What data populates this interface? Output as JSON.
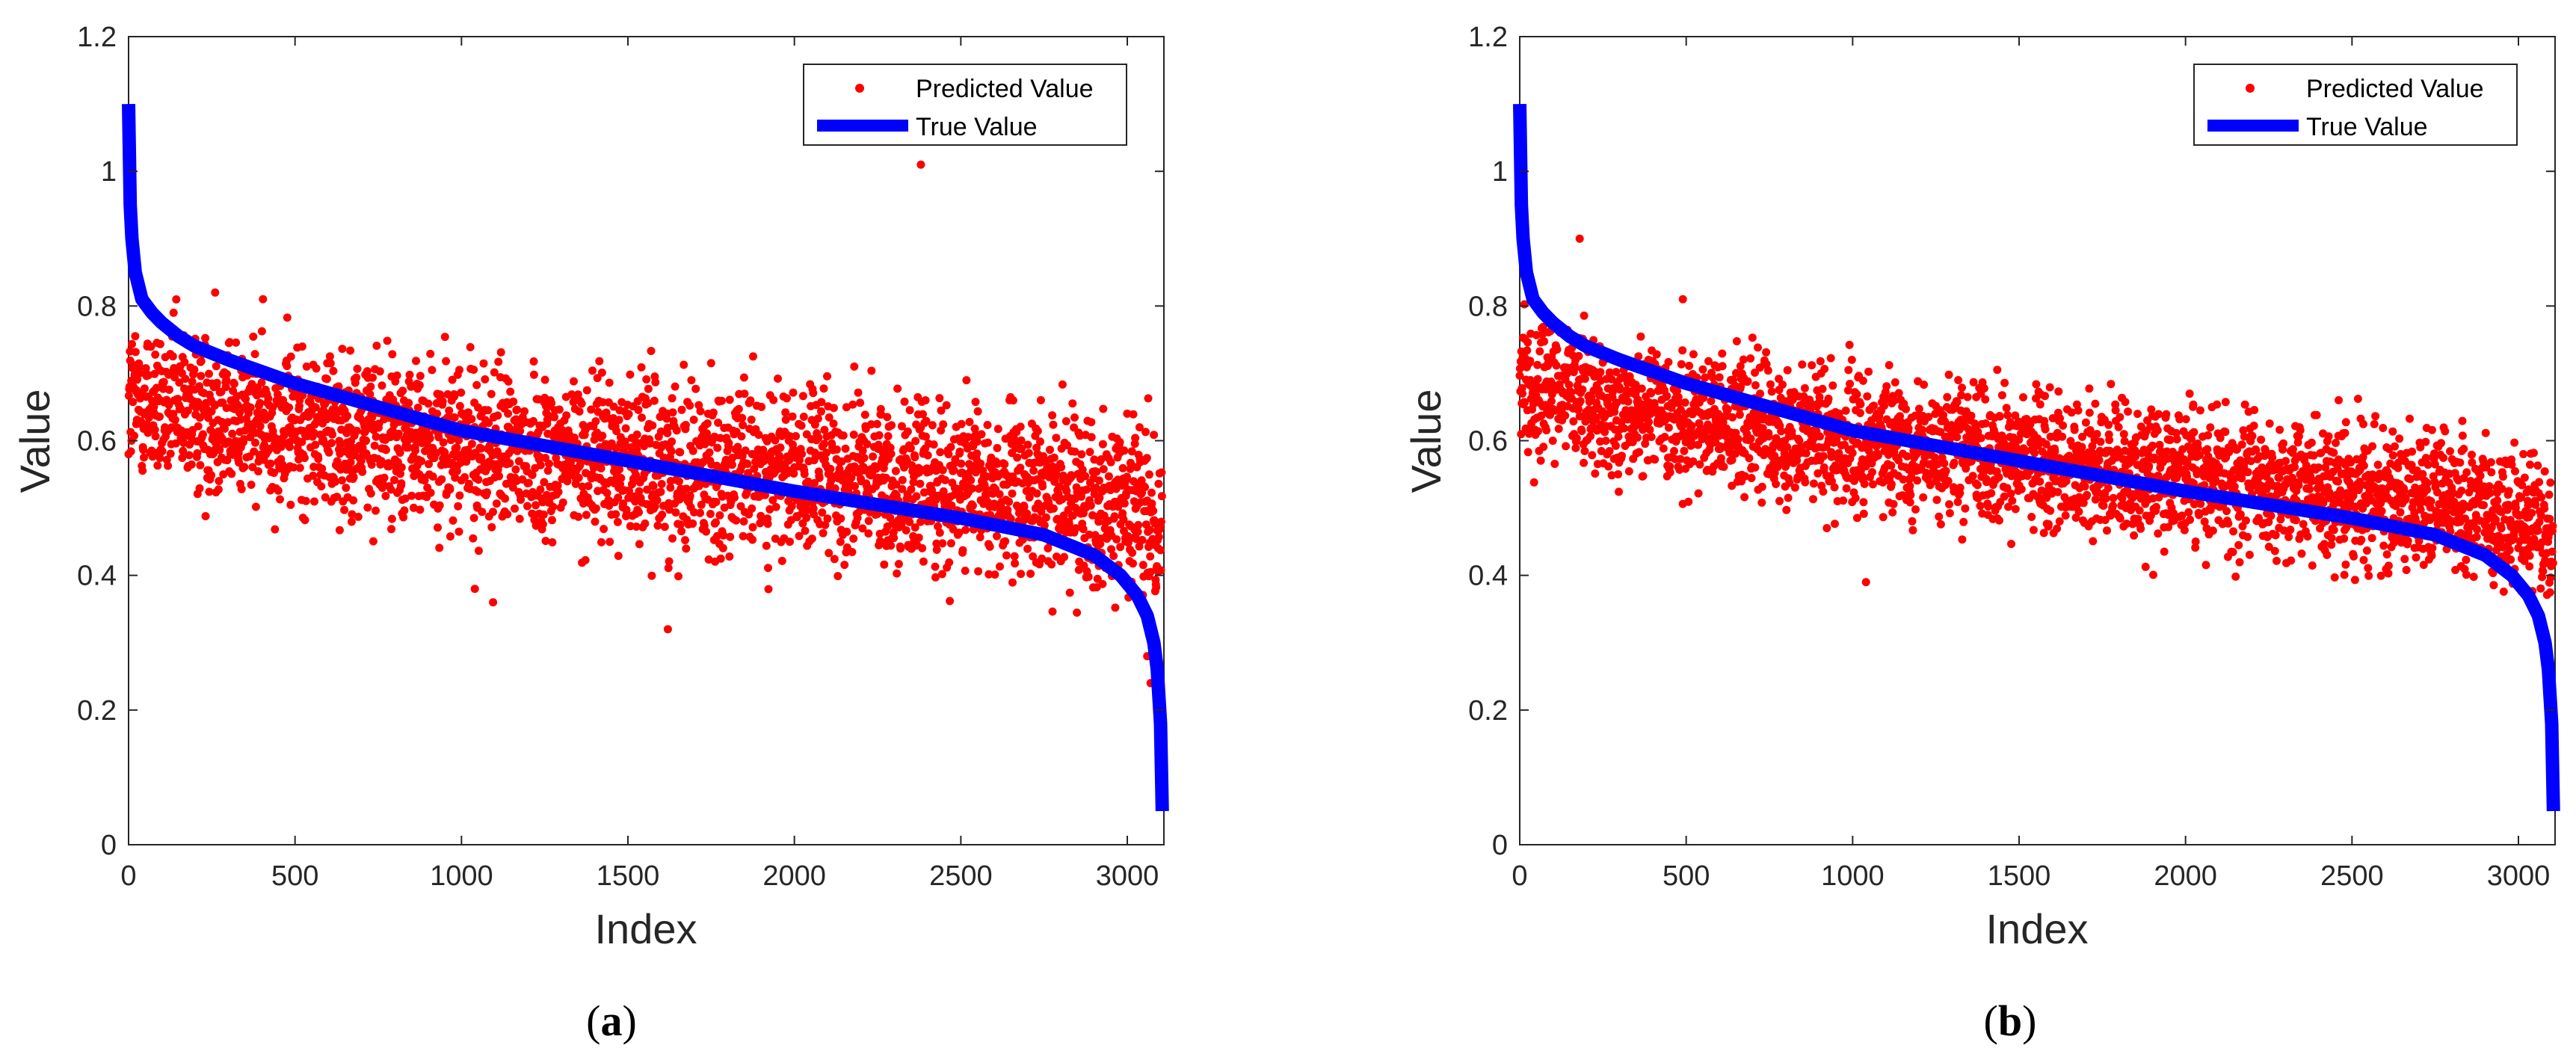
{
  "chart_data": [
    {
      "panel": "a",
      "type": "scatter",
      "caption_open": "(",
      "caption_letter": "a",
      "caption_close": ")",
      "xlabel": "Index",
      "ylabel": "Value",
      "xlim": [
        0,
        3110
      ],
      "ylim": [
        0,
        1.2
      ],
      "xticks": [
        0,
        500,
        1000,
        1500,
        2000,
        2500,
        3000
      ],
      "yticks": [
        0,
        0.2,
        0.4,
        0.6,
        0.8,
        1,
        1.2
      ],
      "legend_position": "top-right",
      "series": [
        {
          "name": "Predicted Value",
          "kind": "scatter",
          "color": "#ff0000",
          "n_points": 3100,
          "trend_x": [
            0,
            250,
            500,
            1000,
            1500,
            2000,
            2500,
            3000,
            3100
          ],
          "trend_y": [
            0.66,
            0.64,
            0.62,
            0.59,
            0.57,
            0.55,
            0.53,
            0.51,
            0.48
          ],
          "spread_y": 0.06,
          "notable_points": [
            {
              "x": 2380,
              "y": 1.01
            },
            {
              "x": 1620,
              "y": 0.32
            },
            {
              "x": 1040,
              "y": 0.38
            },
            {
              "x": 1095,
              "y": 0.36
            },
            {
              "x": 2180,
              "y": 0.71
            },
            {
              "x": 260,
              "y": 0.82
            },
            {
              "x": 3070,
              "y": 0.24
            },
            {
              "x": 3060,
              "y": 0.28
            }
          ]
        },
        {
          "name": "True Value",
          "kind": "line",
          "color": "#0000ff",
          "x": [
            0,
            5,
            10,
            20,
            40,
            70,
            100,
            150,
            200,
            300,
            500,
            750,
            1000,
            1500,
            2000,
            2500,
            2750,
            2900,
            2980,
            3030,
            3060,
            3080,
            3090,
            3100,
            3105
          ],
          "y": [
            1.1,
            0.95,
            0.9,
            0.85,
            0.81,
            0.79,
            0.775,
            0.755,
            0.74,
            0.72,
            0.685,
            0.65,
            0.615,
            0.57,
            0.525,
            0.485,
            0.46,
            0.43,
            0.4,
            0.37,
            0.34,
            0.3,
            0.26,
            0.18,
            0.05
          ]
        }
      ]
    },
    {
      "panel": "b",
      "type": "scatter",
      "caption_open": "(",
      "caption_letter": "b",
      "caption_close": ")",
      "xlabel": "Index",
      "ylabel": "Value",
      "xlim": [
        0,
        3110
      ],
      "ylim": [
        0,
        1.2
      ],
      "xticks": [
        0,
        500,
        1000,
        1500,
        2000,
        2500,
        3000
      ],
      "yticks": [
        0,
        0.2,
        0.4,
        0.6,
        0.8,
        1,
        1.2
      ],
      "legend_position": "top-right",
      "series": [
        {
          "name": "Predicted Value",
          "kind": "scatter",
          "color": "#ff0000",
          "n_points": 3100,
          "trend_x": [
            0,
            250,
            500,
            1000,
            1500,
            2000,
            2500,
            3000,
            3100
          ],
          "trend_y": [
            0.69,
            0.65,
            0.63,
            0.6,
            0.575,
            0.55,
            0.52,
            0.49,
            0.45
          ],
          "spread_y": 0.05,
          "notable_points": [
            {
              "x": 180,
              "y": 0.9
            },
            {
              "x": 490,
              "y": 0.81
            },
            {
              "x": 1040,
              "y": 0.39
            },
            {
              "x": 2460,
              "y": 0.66
            },
            {
              "x": 3080,
              "y": 0.27
            }
          ]
        },
        {
          "name": "True Value",
          "kind": "line",
          "color": "#0000ff",
          "x": [
            0,
            5,
            10,
            20,
            40,
            70,
            100,
            150,
            200,
            300,
            500,
            750,
            1000,
            1500,
            2000,
            2500,
            2750,
            2900,
            2980,
            3030,
            3060,
            3080,
            3090,
            3100,
            3105
          ],
          "y": [
            1.1,
            0.95,
            0.9,
            0.85,
            0.81,
            0.79,
            0.775,
            0.755,
            0.74,
            0.72,
            0.685,
            0.65,
            0.615,
            0.57,
            0.525,
            0.485,
            0.46,
            0.43,
            0.4,
            0.37,
            0.34,
            0.3,
            0.26,
            0.18,
            0.05
          ]
        }
      ]
    }
  ]
}
